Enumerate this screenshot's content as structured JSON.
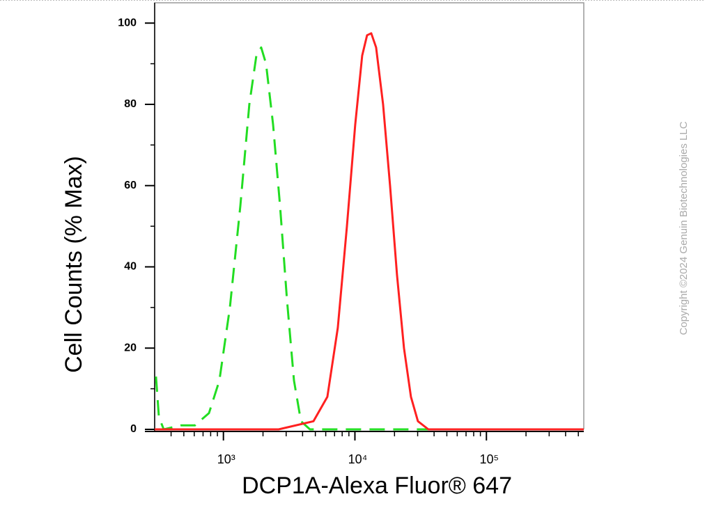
{
  "chart_data": {
    "type": "line",
    "x_label": "DCP1A-Alexa Fluor® 647",
    "y_label": "Cell Counts (% Max)",
    "watermark": "Copyright ©2024 Genuin Biotechnologies LLC",
    "xscale": "log",
    "xlim": [
      300,
      550000
    ],
    "ylim": [
      0,
      105
    ],
    "xticks": [
      {
        "value": 1000,
        "label": "10³"
      },
      {
        "value": 10000,
        "label": "10⁴"
      },
      {
        "value": 100000,
        "label": "10⁵"
      }
    ],
    "xminorticks": [
      400,
      500,
      600,
      700,
      800,
      900,
      2000,
      3000,
      4000,
      5000,
      6000,
      7000,
      8000,
      9000,
      20000,
      30000,
      40000,
      50000,
      60000,
      70000,
      80000,
      90000,
      200000,
      300000,
      400000,
      500000
    ],
    "yticks": [
      0,
      20,
      40,
      60,
      80,
      100
    ],
    "yminorticks": [
      10,
      30,
      50,
      70,
      90
    ],
    "series": [
      {
        "color": "#22dd22",
        "dashed": true,
        "x": [
          307,
          323,
          352,
          477,
          608,
          777,
          932,
          1120,
          1345,
          1575,
          1780,
          1938,
          2110,
          2385,
          2695,
          3043,
          3440,
          3885,
          4550,
          8900,
          30100,
          550000
        ],
        "values": [
          13,
          3,
          0,
          1,
          1,
          4,
          12,
          30,
          55,
          80,
          92,
          94,
          90,
          75,
          55,
          32,
          12,
          2,
          0,
          0,
          0,
          0
        ]
      },
      {
        "color": "#ff2020",
        "dashed": false,
        "x": [
          300,
          2630,
          4840,
          6170,
          7410,
          8690,
          10050,
          11360,
          12370,
          13310,
          14500,
          16380,
          18500,
          20910,
          23610,
          26680,
          30130,
          36180,
          550000
        ],
        "values": [
          0,
          0,
          2,
          8,
          25,
          50,
          75,
          92,
          97,
          97.5,
          94,
          80,
          60,
          38,
          20,
          8,
          2,
          0,
          0
        ]
      }
    ]
  }
}
